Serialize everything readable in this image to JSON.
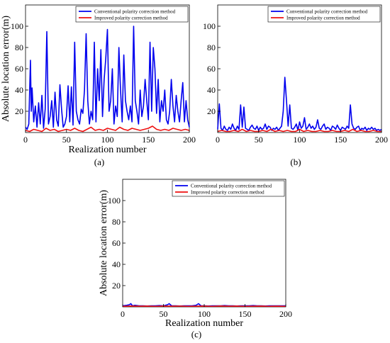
{
  "figure": {
    "series_names": [
      "Conventional polarity correction method",
      "Improved polarity correction method"
    ],
    "series_colors": [
      "#0000ee",
      "#ee1111"
    ]
  },
  "chart_data": [
    {
      "type": "line",
      "panel_label": "(a)",
      "xlabel": "Realization number",
      "ylabel": "Absolute location error(m)",
      "xlim": [
        0,
        200
      ],
      "ylim": [
        0,
        120
      ],
      "xticks": [
        0,
        50,
        100,
        150,
        200
      ],
      "yticks": [
        20,
        40,
        60,
        80,
        100
      ],
      "legend_position": "top-right",
      "series": [
        {
          "name": "Conventional polarity correction method",
          "x": [
            0,
            2,
            4,
            6,
            7,
            8,
            10,
            12,
            14,
            16,
            18,
            20,
            22,
            24,
            26,
            28,
            30,
            32,
            34,
            36,
            38,
            40,
            42,
            44,
            46,
            48,
            50,
            52,
            54,
            56,
            58,
            60,
            62,
            64,
            66,
            68,
            70,
            72,
            74,
            76,
            78,
            80,
            82,
            84,
            86,
            88,
            90,
            92,
            94,
            96,
            98,
            100,
            102,
            104,
            106,
            108,
            110,
            112,
            114,
            116,
            118,
            120,
            122,
            124,
            126,
            128,
            130,
            132,
            134,
            136,
            138,
            140,
            142,
            144,
            146,
            148,
            150,
            152,
            154,
            156,
            158,
            160,
            162,
            164,
            166,
            168,
            170,
            172,
            174,
            176,
            178,
            180,
            182,
            184,
            186,
            188,
            190,
            192,
            194,
            196,
            198,
            200
          ],
          "values": [
            5,
            3,
            8,
            68,
            20,
            42,
            10,
            25,
            5,
            28,
            8,
            35,
            4,
            22,
            95,
            8,
            15,
            30,
            5,
            38,
            12,
            6,
            45,
            22,
            5,
            8,
            15,
            44,
            10,
            43,
            7,
            85,
            20,
            12,
            8,
            22,
            18,
            40,
            93,
            30,
            8,
            20,
            12,
            85,
            10,
            60,
            30,
            78,
            15,
            50,
            70,
            97,
            20,
            30,
            60,
            8,
            25,
            15,
            80,
            40,
            10,
            73,
            30,
            20,
            12,
            25,
            10,
            100,
            30,
            20,
            8,
            40,
            15,
            25,
            50,
            30,
            12,
            85,
            20,
            80,
            60,
            18,
            50,
            10,
            30,
            20,
            40,
            12,
            8,
            20,
            50,
            25,
            10,
            35,
            20,
            10,
            30,
            47,
            10,
            30,
            12,
            5
          ],
          "color": "#0000ee"
        },
        {
          "name": "Improved polarity correction method",
          "x": [
            0,
            5,
            10,
            15,
            20,
            25,
            30,
            35,
            40,
            45,
            50,
            55,
            60,
            65,
            70,
            75,
            80,
            85,
            90,
            95,
            100,
            105,
            110,
            115,
            120,
            125,
            130,
            135,
            140,
            145,
            150,
            155,
            160,
            165,
            170,
            175,
            180,
            185,
            190,
            195,
            200
          ],
          "values": [
            2,
            1,
            3,
            2,
            1,
            4,
            2,
            3,
            1,
            2,
            3,
            2,
            4,
            2,
            1,
            3,
            5,
            2,
            3,
            2,
            4,
            3,
            2,
            5,
            3,
            2,
            4,
            3,
            2,
            3,
            4,
            6,
            3,
            2,
            3,
            2,
            4,
            3,
            2,
            3,
            2
          ],
          "color": "#ee1111"
        }
      ]
    },
    {
      "type": "line",
      "panel_label": "(b)",
      "xlabel": "",
      "ylabel": "",
      "xlim": [
        0,
        200
      ],
      "ylim": [
        0,
        120
      ],
      "xticks": [
        0,
        50,
        100,
        150,
        200
      ],
      "yticks": [
        20,
        40,
        60,
        80,
        100
      ],
      "legend_position": "top-right",
      "series": [
        {
          "name": "Conventional polarity correction method",
          "x": [
            0,
            2,
            4,
            6,
            8,
            10,
            12,
            14,
            16,
            18,
            20,
            22,
            24,
            26,
            28,
            30,
            32,
            34,
            36,
            38,
            40,
            42,
            44,
            46,
            48,
            50,
            52,
            54,
            56,
            58,
            60,
            62,
            64,
            66,
            68,
            70,
            72,
            74,
            76,
            78,
            80,
            82,
            84,
            86,
            88,
            90,
            92,
            94,
            96,
            98,
            100,
            102,
            104,
            106,
            108,
            110,
            112,
            114,
            116,
            118,
            120,
            122,
            124,
            126,
            128,
            130,
            132,
            134,
            136,
            138,
            140,
            142,
            144,
            146,
            148,
            150,
            152,
            154,
            156,
            158,
            160,
            162,
            164,
            166,
            168,
            170,
            172,
            174,
            176,
            178,
            180,
            182,
            184,
            186,
            188,
            190,
            192,
            194,
            196,
            198,
            200
          ],
          "values": [
            3,
            27,
            4,
            2,
            6,
            3,
            2,
            5,
            3,
            8,
            4,
            2,
            6,
            3,
            26,
            5,
            24,
            4,
            3,
            2,
            5,
            7,
            4,
            3,
            6,
            2,
            5,
            3,
            4,
            8,
            3,
            6,
            5,
            2,
            4,
            3,
            5,
            2,
            4,
            6,
            20,
            52,
            30,
            6,
            26,
            4,
            3,
            5,
            8,
            2,
            10,
            4,
            6,
            14,
            3,
            5,
            8,
            4,
            6,
            3,
            5,
            12,
            4,
            3,
            6,
            8,
            3,
            5,
            4,
            2,
            6,
            5,
            3,
            7,
            4,
            2,
            5,
            4,
            3,
            6,
            4,
            26,
            8,
            4,
            3,
            5,
            6,
            2,
            4,
            3,
            5,
            2,
            4,
            3,
            5,
            3,
            4,
            2,
            3,
            2,
            3
          ],
          "color": "#0000ee"
        },
        {
          "name": "Improved polarity correction method",
          "x": [
            0,
            5,
            10,
            15,
            20,
            25,
            30,
            35,
            40,
            45,
            50,
            55,
            60,
            65,
            70,
            75,
            80,
            85,
            90,
            95,
            100,
            105,
            110,
            115,
            120,
            125,
            130,
            135,
            140,
            145,
            150,
            155,
            160,
            165,
            170,
            175,
            180,
            185,
            190,
            195,
            200
          ],
          "values": [
            1,
            2,
            1,
            1,
            2,
            1,
            3,
            1,
            2,
            1,
            1,
            2,
            1,
            3,
            1,
            2,
            1,
            2,
            1,
            1,
            3,
            1,
            2,
            1,
            1,
            2,
            1,
            1,
            2,
            1,
            1,
            2,
            1,
            3,
            1,
            2,
            1,
            1,
            2,
            1,
            1
          ],
          "color": "#ee1111"
        }
      ]
    },
    {
      "type": "line",
      "panel_label": "(c)",
      "xlabel": "Realization number",
      "ylabel": "Absolute location error(m)",
      "xlim": [
        0,
        200
      ],
      "ylim": [
        0,
        120
      ],
      "xticks": [
        0,
        50,
        100,
        150,
        200
      ],
      "yticks": [
        20,
        40,
        60,
        80,
        100
      ],
      "legend_position": "top-right",
      "series": [
        {
          "name": "Conventional polarity correction method",
          "x": [
            0,
            5,
            8,
            10,
            12,
            15,
            20,
            25,
            30,
            35,
            40,
            45,
            50,
            55,
            57,
            60,
            65,
            70,
            75,
            80,
            85,
            90,
            93,
            96,
            100,
            105,
            110,
            115,
            120,
            125,
            130,
            135,
            140,
            145,
            150,
            155,
            160,
            165,
            170,
            175,
            180,
            185,
            190,
            195,
            200
          ],
          "values": [
            1,
            1.5,
            2,
            3,
            1,
            1.5,
            1,
            1,
            0.8,
            1,
            1,
            1.2,
            1,
            2,
            3,
            1,
            1,
            0.8,
            1,
            1,
            1,
            1.5,
            3,
            1,
            1,
            0.8,
            1,
            1,
            1,
            1.2,
            1,
            1,
            0.8,
            1,
            1,
            1,
            1.2,
            1,
            1,
            0.8,
            1,
            1,
            1,
            1,
            1
          ],
          "color": "#0000ee"
        },
        {
          "name": "Improved polarity correction method",
          "x": [
            0,
            10,
            20,
            30,
            40,
            50,
            60,
            70,
            80,
            90,
            100,
            110,
            120,
            130,
            140,
            150,
            160,
            170,
            180,
            190,
            200
          ],
          "values": [
            0.5,
            0.8,
            0.6,
            0.7,
            0.5,
            0.8,
            0.6,
            0.7,
            0.5,
            0.6,
            0.7,
            0.5,
            0.8,
            0.6,
            0.7,
            0.5,
            0.6,
            0.7,
            0.5,
            0.6,
            0.5
          ],
          "color": "#ee1111"
        }
      ]
    }
  ]
}
